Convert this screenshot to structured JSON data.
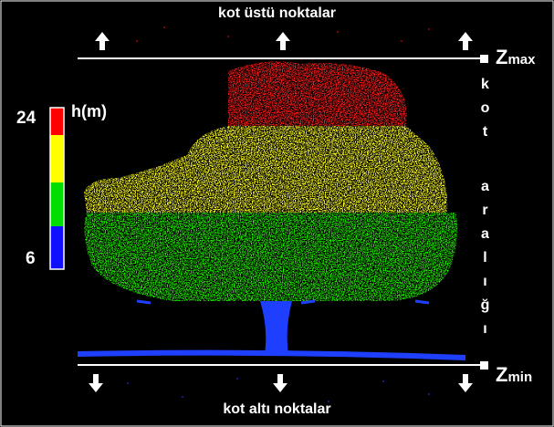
{
  "header": {
    "top": "kot üstü noktalar",
    "bottom": "kot altı noktalar"
  },
  "zmax": {
    "symbol": "Z",
    "sub": "max"
  },
  "zmin": {
    "symbol": "Z",
    "sub": "min"
  },
  "range_label": {
    "first": "kot",
    "second": "aralığı"
  },
  "legend": {
    "title": "h(m)",
    "top": "24",
    "bottom": "6"
  }
}
